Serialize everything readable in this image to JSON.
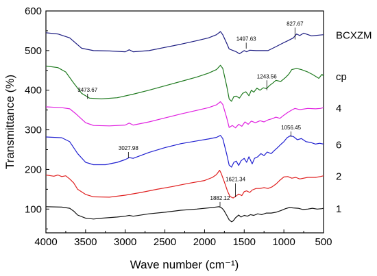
{
  "chart_data": {
    "type": "line",
    "xlabel": "Wave number (cm⁻¹)",
    "ylabel": "Transmittance (%)",
    "xlim": [
      4000,
      500
    ],
    "ylim": [
      40,
      600
    ],
    "x_reversed": true,
    "xticks": [
      4000,
      3500,
      3000,
      2500,
      2000,
      1500,
      1000,
      500
    ],
    "yticks": [
      100,
      200,
      300,
      400,
      500,
      600
    ],
    "grid": false,
    "legend": "labels next to each curve at right",
    "series": [
      {
        "name": "BCXZM",
        "color": "#1a1a80",
        "points": [
          [
            4000,
            545
          ],
          [
            3850,
            542
          ],
          [
            3700,
            532
          ],
          [
            3550,
            506
          ],
          [
            3400,
            500
          ],
          [
            3200,
            499
          ],
          [
            3000,
            497
          ],
          [
            2950,
            502
          ],
          [
            2900,
            497
          ],
          [
            2700,
            500
          ],
          [
            2500,
            508
          ],
          [
            2300,
            516
          ],
          [
            2100,
            525
          ],
          [
            1950,
            532
          ],
          [
            1850,
            540
          ],
          [
            1800,
            548
          ],
          [
            1770,
            540
          ],
          [
            1720,
            518
          ],
          [
            1690,
            504
          ],
          [
            1650,
            501
          ],
          [
            1600,
            497
          ],
          [
            1560,
            492
          ],
          [
            1500,
            500
          ],
          [
            1470,
            497
          ],
          [
            1430,
            501
          ],
          [
            1350,
            500
          ],
          [
            1200,
            500
          ],
          [
            1100,
            510
          ],
          [
            1020,
            518
          ],
          [
            950,
            525
          ],
          [
            880,
            532
          ],
          [
            840,
            542
          ],
          [
            800,
            538
          ],
          [
            750,
            544
          ],
          [
            650,
            537
          ],
          [
            560,
            539
          ],
          [
            500,
            540
          ]
        ]
      },
      {
        "name": "cp",
        "color": "#1f7a1f",
        "points": [
          [
            4000,
            461
          ],
          [
            3850,
            457
          ],
          [
            3750,
            446
          ],
          [
            3650,
            418
          ],
          [
            3550,
            392
          ],
          [
            3450,
            380
          ],
          [
            3300,
            378
          ],
          [
            3100,
            381
          ],
          [
            2900,
            390
          ],
          [
            2700,
            400
          ],
          [
            2500,
            411
          ],
          [
            2300,
            422
          ],
          [
            2100,
            433
          ],
          [
            1950,
            443
          ],
          [
            1850,
            452
          ],
          [
            1800,
            463
          ],
          [
            1770,
            455
          ],
          [
            1720,
            410
          ],
          [
            1690,
            378
          ],
          [
            1660,
            372
          ],
          [
            1630,
            384
          ],
          [
            1600,
            385
          ],
          [
            1560,
            380
          ],
          [
            1520,
            392
          ],
          [
            1480,
            396
          ],
          [
            1440,
            386
          ],
          [
            1410,
            400
          ],
          [
            1380,
            395
          ],
          [
            1340,
            405
          ],
          [
            1300,
            400
          ],
          [
            1260,
            406
          ],
          [
            1220,
            404
          ],
          [
            1180,
            412
          ],
          [
            1140,
            418
          ],
          [
            1100,
            425
          ],
          [
            1040,
            422
          ],
          [
            980,
            432
          ],
          [
            940,
            440
          ],
          [
            900,
            452
          ],
          [
            840,
            455
          ],
          [
            780,
            452
          ],
          [
            700,
            446
          ],
          [
            640,
            440
          ],
          [
            560,
            430
          ],
          [
            520,
            440
          ],
          [
            500,
            436
          ]
        ]
      },
      {
        "name": "4",
        "color": "#e020e0",
        "points": [
          [
            4000,
            358
          ],
          [
            3800,
            356
          ],
          [
            3700,
            353
          ],
          [
            3620,
            340
          ],
          [
            3500,
            318
          ],
          [
            3400,
            311
          ],
          [
            3200,
            310
          ],
          [
            3000,
            312
          ],
          [
            2950,
            317
          ],
          [
            2900,
            312
          ],
          [
            2700,
            320
          ],
          [
            2500,
            330
          ],
          [
            2300,
            340
          ],
          [
            2100,
            349
          ],
          [
            1950,
            356
          ],
          [
            1850,
            363
          ],
          [
            1800,
            371
          ],
          [
            1770,
            364
          ],
          [
            1720,
            330
          ],
          [
            1690,
            306
          ],
          [
            1650,
            311
          ],
          [
            1610,
            305
          ],
          [
            1570,
            314
          ],
          [
            1530,
            309
          ],
          [
            1490,
            320
          ],
          [
            1450,
            314
          ],
          [
            1410,
            322
          ],
          [
            1360,
            318
          ],
          [
            1300,
            323
          ],
          [
            1250,
            320
          ],
          [
            1200,
            325
          ],
          [
            1150,
            328
          ],
          [
            1100,
            332
          ],
          [
            1050,
            329
          ],
          [
            1000,
            337
          ],
          [
            950,
            344
          ],
          [
            900,
            350
          ],
          [
            860,
            354
          ],
          [
            800,
            351
          ],
          [
            700,
            354
          ],
          [
            600,
            353
          ],
          [
            540,
            354
          ],
          [
            500,
            356
          ]
        ]
      },
      {
        "name": "6",
        "color": "#2020d0",
        "points": [
          [
            4000,
            282
          ],
          [
            3800,
            280
          ],
          [
            3700,
            270
          ],
          [
            3600,
            240
          ],
          [
            3500,
            218
          ],
          [
            3400,
            212
          ],
          [
            3250,
            212
          ],
          [
            3100,
            218
          ],
          [
            3000,
            225
          ],
          [
            2950,
            230
          ],
          [
            2900,
            228
          ],
          [
            2700,
            243
          ],
          [
            2500,
            255
          ],
          [
            2300,
            265
          ],
          [
            2100,
            272
          ],
          [
            1950,
            277
          ],
          [
            1850,
            281
          ],
          [
            1800,
            286
          ],
          [
            1770,
            278
          ],
          [
            1720,
            238
          ],
          [
            1690,
            211
          ],
          [
            1660,
            206
          ],
          [
            1630,
            218
          ],
          [
            1600,
            221
          ],
          [
            1570,
            210
          ],
          [
            1540,
            222
          ],
          [
            1500,
            228
          ],
          [
            1470,
            218
          ],
          [
            1440,
            232
          ],
          [
            1400,
            214
          ],
          [
            1370,
            228
          ],
          [
            1330,
            232
          ],
          [
            1290,
            240
          ],
          [
            1250,
            235
          ],
          [
            1210,
            244
          ],
          [
            1160,
            240
          ],
          [
            1120,
            248
          ],
          [
            1080,
            255
          ],
          [
            1040,
            263
          ],
          [
            1000,
            270
          ],
          [
            960,
            280
          ],
          [
            920,
            285
          ],
          [
            880,
            283
          ],
          [
            830,
            275
          ],
          [
            780,
            278
          ],
          [
            720,
            270
          ],
          [
            660,
            268
          ],
          [
            600,
            264
          ],
          [
            550,
            266
          ],
          [
            500,
            264
          ]
        ]
      },
      {
        "name": "2",
        "color": "#e02020",
        "points": [
          [
            4000,
            186
          ],
          [
            3900,
            183
          ],
          [
            3850,
            186
          ],
          [
            3800,
            182
          ],
          [
            3750,
            184
          ],
          [
            3700,
            176
          ],
          [
            3650,
            166
          ],
          [
            3600,
            150
          ],
          [
            3500,
            137
          ],
          [
            3400,
            131
          ],
          [
            3200,
            130
          ],
          [
            3000,
            135
          ],
          [
            2800,
            142
          ],
          [
            2600,
            150
          ],
          [
            2400,
            157
          ],
          [
            2200,
            165
          ],
          [
            2000,
            172
          ],
          [
            1900,
            180
          ],
          [
            1850,
            187
          ],
          [
            1810,
            198
          ],
          [
            1790,
            190
          ],
          [
            1750,
            168
          ],
          [
            1710,
            145
          ],
          [
            1680,
            132
          ],
          [
            1640,
            128
          ],
          [
            1610,
            132
          ],
          [
            1570,
            138
          ],
          [
            1530,
            134
          ],
          [
            1500,
            144
          ],
          [
            1470,
            146
          ],
          [
            1430,
            142
          ],
          [
            1400,
            148
          ],
          [
            1350,
            152
          ],
          [
            1300,
            152
          ],
          [
            1250,
            154
          ],
          [
            1200,
            152
          ],
          [
            1150,
            156
          ],
          [
            1100,
            163
          ],
          [
            1050,
            173
          ],
          [
            1000,
            181
          ],
          [
            950,
            182
          ],
          [
            900,
            178
          ],
          [
            850,
            180
          ],
          [
            800,
            176
          ],
          [
            700,
            180
          ],
          [
            600,
            180
          ],
          [
            540,
            182
          ],
          [
            500,
            184
          ]
        ]
      },
      {
        "name": "1",
        "color": "#111111",
        "points": [
          [
            4000,
            106
          ],
          [
            3800,
            105
          ],
          [
            3700,
            102
          ],
          [
            3650,
            95
          ],
          [
            3600,
            85
          ],
          [
            3500,
            77
          ],
          [
            3400,
            75
          ],
          [
            3300,
            77
          ],
          [
            3100,
            80
          ],
          [
            3000,
            82
          ],
          [
            2950,
            84
          ],
          [
            2900,
            82
          ],
          [
            2700,
            88
          ],
          [
            2500,
            92
          ],
          [
            2300,
            97
          ],
          [
            2100,
            100
          ],
          [
            1900,
            104
          ],
          [
            1820,
            106
          ],
          [
            1790,
            104
          ],
          [
            1760,
            98
          ],
          [
            1720,
            84
          ],
          [
            1690,
            73
          ],
          [
            1660,
            68
          ],
          [
            1640,
            70
          ],
          [
            1610,
            78
          ],
          [
            1570,
            85
          ],
          [
            1540,
            80
          ],
          [
            1500,
            84
          ],
          [
            1460,
            82
          ],
          [
            1420,
            86
          ],
          [
            1380,
            84
          ],
          [
            1330,
            88
          ],
          [
            1280,
            86
          ],
          [
            1220,
            90
          ],
          [
            1160,
            90
          ],
          [
            1100,
            92
          ],
          [
            1040,
            96
          ],
          [
            980,
            101
          ],
          [
            930,
            104
          ],
          [
            880,
            103
          ],
          [
            820,
            102
          ],
          [
            760,
            99
          ],
          [
            700,
            100
          ],
          [
            640,
            102
          ],
          [
            580,
            100
          ],
          [
            520,
            101
          ],
          [
            500,
            102
          ]
        ]
      }
    ],
    "annotations": [
      {
        "text": "827.67",
        "x": 860,
        "y_line": [
          558,
          528
        ]
      },
      {
        "text": "1497.63",
        "x": 1475,
        "y_line": [
          520,
          505
        ]
      },
      {
        "text": "3473.67",
        "x": 3475,
        "y_line": [
          391,
          378
        ]
      },
      {
        "text": "1243.56",
        "x": 1215,
        "y_line": [
          425,
          400
        ]
      },
      {
        "text": "1056.45",
        "x": 910,
        "y_line": [
          296,
          282
        ]
      },
      {
        "text": "3027.98",
        "x": 2960,
        "y_line": [
          244,
          229
        ]
      },
      {
        "text": "1621.34",
        "x": 1610,
        "y_line": [
          165,
          130
        ]
      },
      {
        "text": "1882.12",
        "x": 1805,
        "y_line": [
          118,
          105
        ]
      }
    ]
  }
}
